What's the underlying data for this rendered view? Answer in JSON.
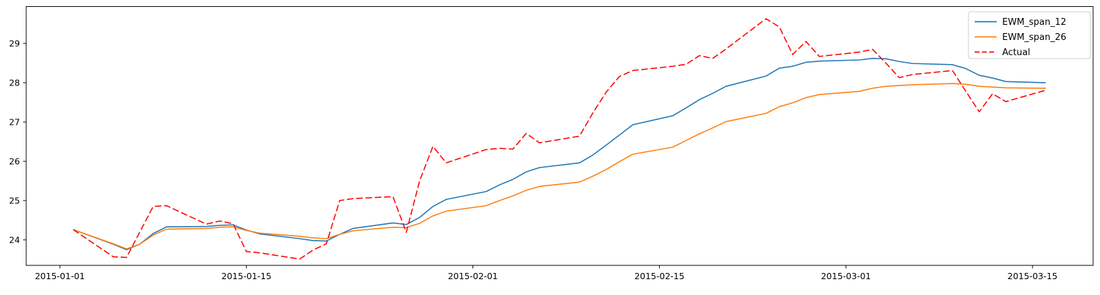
{
  "chart_data": {
    "type": "line",
    "title": "",
    "xlabel": "",
    "ylabel": "",
    "grid": false,
    "background": "#ffffff",
    "spine_color": "#000000",
    "epoch": "2015-01-01",
    "xlim_days_from_epoch": [
      -2.53,
      77.55
    ],
    "ylim": [
      23.35,
      29.94
    ],
    "y_ticks": [
      24,
      25,
      26,
      27,
      28,
      29
    ],
    "x_tick_labels": [
      "2015-01-01",
      "2015-01-15",
      "2015-02-01",
      "2015-02-15",
      "2015-03-01",
      "2015-03-15"
    ],
    "x_dates": [
      "2015-01-02",
      "2015-01-05",
      "2015-01-06",
      "2015-01-07",
      "2015-01-08",
      "2015-01-09",
      "2015-01-12",
      "2015-01-13",
      "2015-01-14",
      "2015-01-15",
      "2015-01-16",
      "2015-01-19",
      "2015-01-20",
      "2015-01-21",
      "2015-01-22",
      "2015-01-23",
      "2015-01-26",
      "2015-01-27",
      "2015-01-28",
      "2015-01-29",
      "2015-01-30",
      "2015-02-02",
      "2015-02-03",
      "2015-02-04",
      "2015-02-05",
      "2015-02-06",
      "2015-02-09",
      "2015-02-10",
      "2015-02-11",
      "2015-02-12",
      "2015-02-13",
      "2015-02-16",
      "2015-02-17",
      "2015-02-18",
      "2015-02-19",
      "2015-02-20",
      "2015-02-23",
      "2015-02-24",
      "2015-02-25",
      "2015-02-26",
      "2015-02-27",
      "2015-03-02",
      "2015-03-03",
      "2015-03-04",
      "2015-03-05",
      "2015-03-06",
      "2015-03-09",
      "2015-03-10",
      "2015-03-11",
      "2015-03-12",
      "2015-03-13",
      "2015-03-16"
    ],
    "series": [
      {
        "name": "EWM_span_12",
        "color": "#1f77b4",
        "line_style": "solid",
        "values": [
          24.26,
          23.89,
          23.75,
          23.89,
          24.16,
          24.33,
          24.34,
          24.37,
          24.38,
          24.25,
          24.15,
          24.03,
          23.98,
          23.97,
          24.14,
          24.29,
          24.43,
          24.39,
          24.57,
          24.85,
          25.03,
          25.23,
          25.4,
          25.54,
          25.73,
          25.84,
          25.96,
          26.16,
          26.41,
          26.67,
          26.93,
          27.16,
          27.36,
          27.57,
          27.73,
          27.91,
          28.17,
          28.37,
          28.42,
          28.52,
          28.55,
          28.58,
          28.62,
          28.61,
          28.54,
          28.49,
          28.46,
          28.36,
          28.19,
          28.12,
          28.03,
          28.0
        ]
      },
      {
        "name": "EWM_span_26",
        "color": "#ff7f0e",
        "line_style": "solid",
        "values": [
          24.26,
          23.9,
          23.77,
          23.89,
          24.12,
          24.27,
          24.29,
          24.32,
          24.33,
          24.24,
          24.17,
          24.09,
          24.05,
          24.03,
          24.14,
          24.23,
          24.32,
          24.31,
          24.42,
          24.61,
          24.73,
          24.87,
          25.0,
          25.12,
          25.26,
          25.36,
          25.47,
          25.62,
          25.79,
          25.99,
          26.18,
          26.36,
          26.53,
          26.7,
          26.85,
          27.01,
          27.22,
          27.39,
          27.49,
          27.62,
          27.7,
          27.78,
          27.86,
          27.91,
          27.93,
          27.95,
          27.98,
          27.96,
          27.91,
          27.89,
          27.87,
          27.86
        ]
      },
      {
        "name": "Actual",
        "color": "#ff0000",
        "line_style": "dashed",
        "values": [
          24.26,
          23.57,
          23.55,
          24.2,
          24.85,
          24.87,
          24.4,
          24.48,
          24.41,
          23.7,
          23.67,
          23.51,
          23.74,
          23.9,
          25.0,
          25.05,
          25.1,
          24.19,
          25.5,
          26.38,
          25.96,
          26.3,
          26.33,
          26.31,
          26.71,
          26.47,
          26.64,
          27.23,
          27.76,
          28.16,
          28.31,
          28.42,
          28.47,
          28.69,
          28.62,
          28.86,
          29.63,
          29.42,
          28.72,
          29.05,
          28.67,
          28.78,
          28.85,
          28.5,
          28.13,
          28.21,
          28.31,
          27.78,
          27.26,
          27.72,
          27.52,
          27.81
        ]
      }
    ],
    "legend": {
      "position": "upper right",
      "entries": [
        "EWM_span_12",
        "EWM_span_26",
        "Actual"
      ]
    }
  }
}
